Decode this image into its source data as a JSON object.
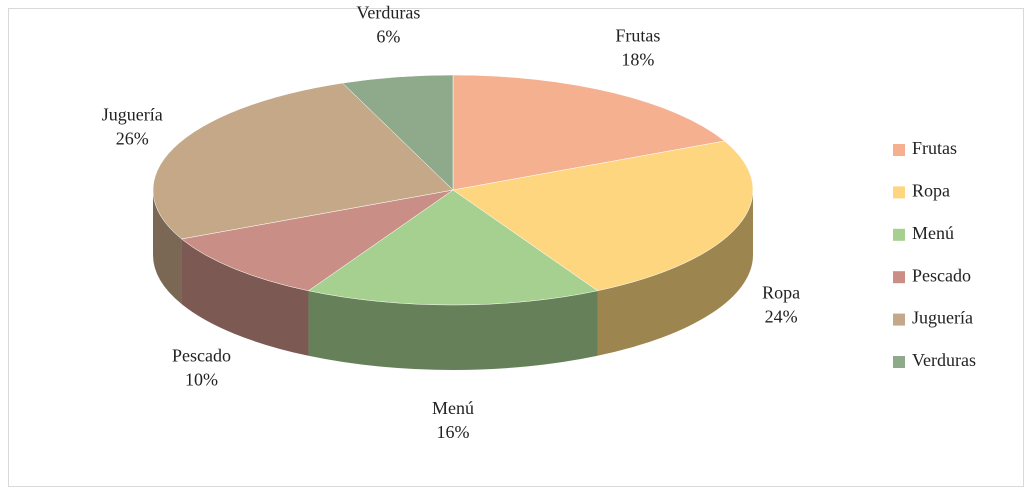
{
  "chart_data": {
    "type": "pie",
    "categories": [
      "Frutas",
      "Ropa",
      "Menú",
      "Pescado",
      "Juguería",
      "Verduras"
    ],
    "values": [
      18,
      24,
      16,
      10,
      26,
      6
    ],
    "value_labels": [
      "18%",
      "24%",
      "16%",
      "10%",
      "26%",
      "6%"
    ],
    "colors": [
      "#f4b08f",
      "#fdd67f",
      "#a5d08f",
      "#c98f86",
      "#c4a888",
      "#8fa98b"
    ],
    "legend": "right"
  }
}
